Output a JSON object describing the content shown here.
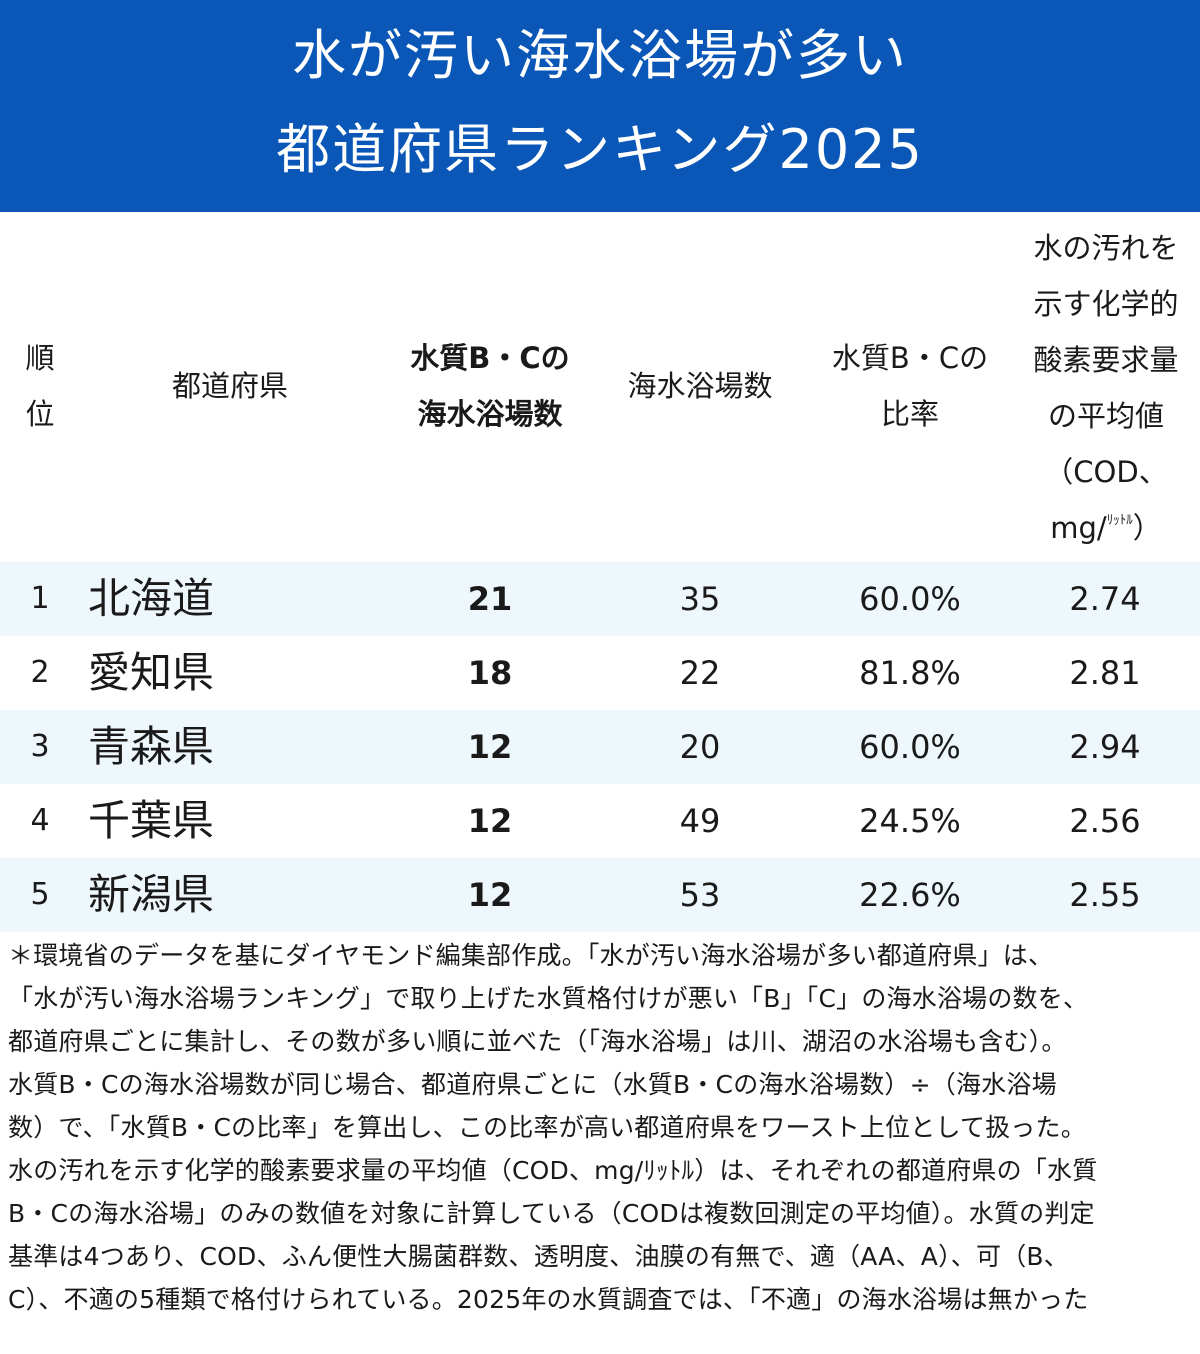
{
  "header": {
    "title_line1": "水が汚い海水浴場が多い",
    "title_line2": "都道府県ランキング2025"
  },
  "columns": {
    "rank": [
      "順",
      "位"
    ],
    "prefecture": "都道府県",
    "bc_count": [
      "水質B・Cの",
      "海水浴場数"
    ],
    "total": "海水浴場数",
    "ratio": [
      "水質B・Cの",
      "比率"
    ],
    "cod": [
      "水の汚れを",
      "示す化学的",
      "酸素要求量",
      "の平均値",
      "（COD、",
      "mg/",
      "ﾘｯﾄﾙ",
      "）"
    ]
  },
  "rows": [
    {
      "rank": "1",
      "prefecture": "北海道",
      "bc_count": "21",
      "total": "35",
      "ratio": "60.0%",
      "cod": "2.74"
    },
    {
      "rank": "2",
      "prefecture": "愛知県",
      "bc_count": "18",
      "total": "22",
      "ratio": "81.8%",
      "cod": "2.81"
    },
    {
      "rank": "3",
      "prefecture": "青森県",
      "bc_count": "12",
      "total": "20",
      "ratio": "60.0%",
      "cod": "2.94"
    },
    {
      "rank": "4",
      "prefecture": "千葉県",
      "bc_count": "12",
      "total": "49",
      "ratio": "24.5%",
      "cod": "2.56"
    },
    {
      "rank": "5",
      "prefecture": "新潟県",
      "bc_count": "12",
      "total": "53",
      "ratio": "22.6%",
      "cod": "2.55"
    }
  ],
  "note_lines": [
    "＊環境省のデータを基にダイヤモンド編集部作成。「水が汚い海水浴場が多い都道府県」は、",
    "「水が汚い海水浴場ランキング」で取り上げた水質格付けが悪い「B」「C」の海水浴場の数を、",
    "都道府県ごとに集計し、その数が多い順に並べた（「海水浴場」は川、湖沼の水浴場も含む）。",
    "水質B・Cの海水浴場数が同じ場合、都道府県ごとに（水質B・Cの海水浴場数）÷（海水浴場",
    "数）で、「水質B・Cの比率」を算出し、この比率が高い都道府県をワースト上位として扱った。",
    "水の汚れを示す化学的酸素要求量の平均値（COD、mg/ﾘｯﾄﾙ）は、それぞれの都道府県の「水質",
    "B・Cの海水浴場」のみの数値を対象に計算している（CODは複数回測定の平均値）。水質の判定",
    "基準は4つあり、COD、ふん便性大腸菌群数、透明度、油膜の有無で、適（AA、A）、可（B、",
    "C）、不適の5種類で格付けられている。2025年の水質調査では、「不適」の海水浴場は無かった"
  ],
  "colors": {
    "header_bg": "#0a57b8",
    "row_shade": "#eef7fc"
  }
}
